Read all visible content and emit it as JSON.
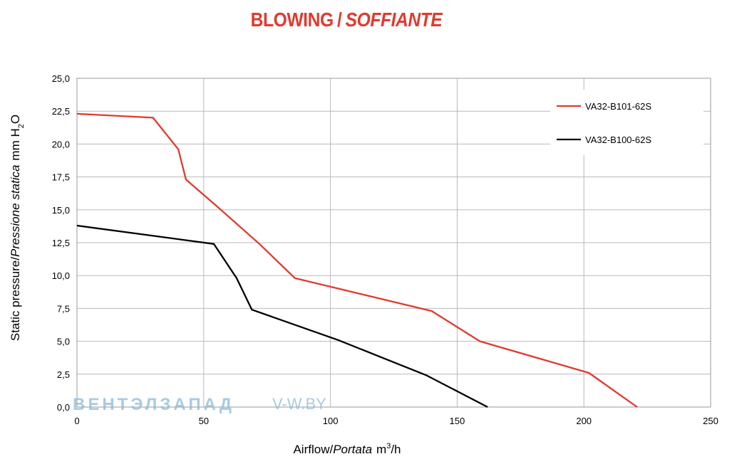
{
  "title": {
    "main": "BLOWING",
    "separator": "/",
    "italic": "SOFFIANTE"
  },
  "watermark": {
    "text": "ВЕНТЭЛЗАПАД",
    "url": "V-W.BY"
  },
  "chart_data": {
    "type": "line",
    "xlabel": {
      "main": "Airflow",
      "separator": "/",
      "italic": "Portata",
      "unit_prefix": "m",
      "unit_sup": "3",
      "unit_suffix": "/h"
    },
    "ylabel": {
      "main": "Static pressure",
      "separator": "/",
      "italic": "Pressione statica",
      "unit_prefix": "mm  H",
      "unit_sub": "2",
      "unit_suffix": "O"
    },
    "xlim": [
      0,
      250
    ],
    "ylim": [
      0,
      25
    ],
    "xticks": [
      "0",
      "50",
      "100",
      "150",
      "200",
      "250"
    ],
    "yticks": [
      "0,0",
      "2,5",
      "5,0",
      "7,5",
      "10,0",
      "12,5",
      "15,0",
      "17,5",
      "20,0",
      "22,5",
      "25,0"
    ],
    "grid": true,
    "legend_position": "top-right",
    "series": [
      {
        "name": "VA32-B101-62S",
        "color": "#e03a2e",
        "points": [
          [
            0,
            22.3
          ],
          [
            30,
            22.0
          ],
          [
            40,
            19.6
          ],
          [
            43,
            17.3
          ],
          [
            55,
            15.3
          ],
          [
            72,
            12.4
          ],
          [
            86,
            9.8
          ],
          [
            140,
            7.3
          ],
          [
            159,
            5.0
          ],
          [
            202,
            2.6
          ],
          [
            221,
            0.0
          ]
        ]
      },
      {
        "name": "VA32-B100-62S",
        "color": "#000000",
        "points": [
          [
            0,
            13.8
          ],
          [
            54,
            12.4
          ],
          [
            63,
            9.8
          ],
          [
            69,
            7.4
          ],
          [
            103,
            5.1
          ],
          [
            138,
            2.4
          ],
          [
            162,
            0.0
          ]
        ]
      }
    ]
  }
}
